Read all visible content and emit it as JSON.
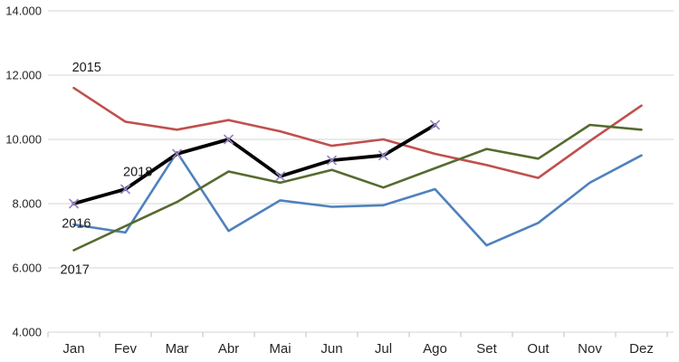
{
  "chart_data": {
    "type": "line",
    "title": "",
    "xlabel": "",
    "ylabel": "",
    "categories": [
      "Jan",
      "Fev",
      "Mar",
      "Abr",
      "Mai",
      "Jun",
      "Jul",
      "Ago",
      "Set",
      "Out",
      "Nov",
      "Dez"
    ],
    "series": [
      {
        "name": "2015",
        "color": "#c0504d",
        "marker": "none",
        "values": [
          11600,
          10550,
          10300,
          10600,
          10250,
          9800,
          10000,
          9550,
          9200,
          8800,
          9950,
          11050
        ]
      },
      {
        "name": "2016",
        "color": "#4f81bd",
        "marker": "none",
        "values": [
          7350,
          7100,
          9600,
          7150,
          8100,
          7900,
          7950,
          8450,
          6700,
          7400,
          8650,
          9500
        ]
      },
      {
        "name": "2017",
        "color": "#556b2f",
        "marker": "none",
        "values": [
          6550,
          7300,
          8050,
          9000,
          8650,
          9050,
          8500,
          9100,
          9700,
          9400,
          10450,
          10300
        ]
      },
      {
        "name": "2018",
        "color": "#000000",
        "marker": "x",
        "marker_color": "#9683c2",
        "values": [
          8000,
          8450,
          9550,
          10000,
          8850,
          9350,
          9500,
          10450,
          null,
          null,
          null,
          null
        ]
      }
    ],
    "ylim": [
      4000,
      14000
    ],
    "yticks": [
      {
        "label": "14.000",
        "value": 14000
      },
      {
        "label": "12.000",
        "value": 12000
      },
      {
        "label": "10.000",
        "value": 10000
      },
      {
        "label": "8.000",
        "value": 8000
      },
      {
        "label": "6.000",
        "value": 6000
      },
      {
        "label": "4.000",
        "value": 4000
      }
    ],
    "grid": true,
    "legend_position": "labels-on-chart",
    "annotations": [
      {
        "text": "2015",
        "x_cat": 0.25,
        "y_value": 12250
      },
      {
        "text": "2018",
        "x_cat": 1.24,
        "y_value": 9000
      },
      {
        "text": "2016",
        "x_cat": 0.05,
        "y_value": 7400
      },
      {
        "text": "2017",
        "x_cat": 0.02,
        "y_value": 5960
      }
    ],
    "colors": {
      "gridline": "#d6d6d6",
      "tick": "#bfbfbf",
      "axis_text": "#262626",
      "annotation_text": "#1a1a1a",
      "background": "#ffffff"
    }
  }
}
